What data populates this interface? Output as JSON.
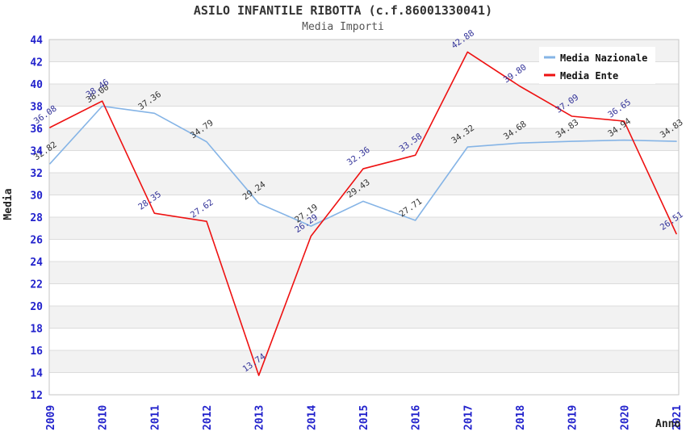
{
  "window": {
    "background": "#ffffff"
  },
  "chart_data": {
    "type": "line",
    "title": "ASILO INFANTILE RIBOTTA (c.f.86001330041)",
    "subtitle": "Media Importi",
    "xlabel": "Anno",
    "ylabel": "Media",
    "x": [
      "2009",
      "2010",
      "2011",
      "2012",
      "2013",
      "2014",
      "2015",
      "2016",
      "2017",
      "2018",
      "2019",
      "2020",
      "2021"
    ],
    "series": [
      {
        "name": "Media Nazionale",
        "color": "#85b4e6",
        "label_color": "#333333",
        "values": [
          32.82,
          38.0,
          37.36,
          34.79,
          29.24,
          27.19,
          29.43,
          27.71,
          34.32,
          34.68,
          34.83,
          34.94,
          34.83
        ]
      },
      {
        "name": "Media Ente",
        "color": "#ee1111",
        "label_color": "#333399",
        "values": [
          36.08,
          38.46,
          28.35,
          27.62,
          13.74,
          26.29,
          32.36,
          33.58,
          42.88,
          39.8,
          37.09,
          36.65,
          26.51
        ]
      }
    ],
    "ylim": [
      12,
      44
    ],
    "ytick_step": 2,
    "y_ticks": [
      "44",
      "42",
      "40",
      "38",
      "36",
      "34",
      "32",
      "30",
      "28",
      "26",
      "24",
      "22",
      "20",
      "18",
      "16",
      "14",
      "12"
    ],
    "legend": {
      "position": "top-right",
      "entries": [
        "Media Nazionale",
        "Media Ente"
      ]
    },
    "grid": "horizontal-bands",
    "value_label_decimals": 2,
    "colors": {
      "tick_label": "#2222cc",
      "band": "#f2f2f2",
      "band_alt": "#ffffff",
      "grid": "#dcdcdc",
      "border": "#c6c6c6",
      "legend_bg": "#ffffff"
    }
  }
}
